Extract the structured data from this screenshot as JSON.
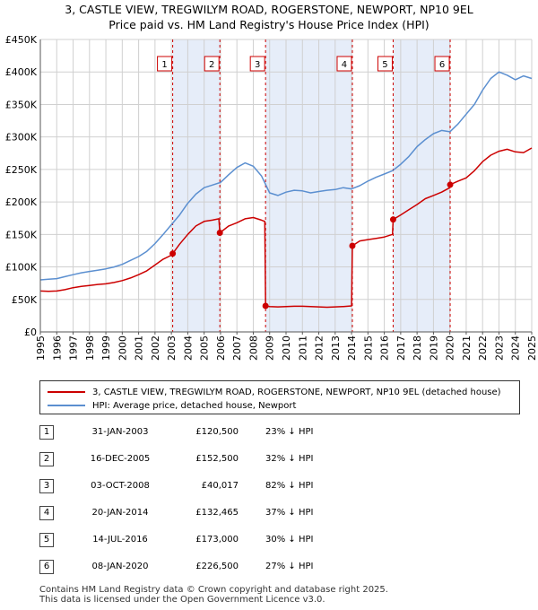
{
  "title": {
    "line1": "3, CASTLE VIEW, TREGWILYM ROAD, ROGERSTONE, NEWPORT, NP10 9EL",
    "line2": "Price paid vs. HM Land Registry's House Price Index (HPI)"
  },
  "colors": {
    "price_line": "#cc0000",
    "hpi_line": "#5b8fd0",
    "shade": "#e6edf9",
    "event_line": "#cc0000",
    "grid": "#d0d0d0"
  },
  "legend": {
    "items": [
      {
        "label": "3, CASTLE VIEW, TREGWILYM ROAD, ROGERSTONE, NEWPORT, NP10 9EL (detached house)"
      },
      {
        "label": "HPI: Average price, detached house, Newport"
      }
    ]
  },
  "transactions": [
    {
      "num": "1",
      "date": "31-JAN-2003",
      "price": "£120,500",
      "hpi": "23% ↓ HPI"
    },
    {
      "num": "2",
      "date": "16-DEC-2005",
      "price": "£152,500",
      "hpi": "32% ↓ HPI"
    },
    {
      "num": "3",
      "date": "03-OCT-2008",
      "price": "£40,017",
      "hpi": "82% ↓ HPI"
    },
    {
      "num": "4",
      "date": "20-JAN-2014",
      "price": "£132,465",
      "hpi": "37% ↓ HPI"
    },
    {
      "num": "5",
      "date": "14-JUL-2016",
      "price": "£173,000",
      "hpi": "30% ↓ HPI"
    },
    {
      "num": "6",
      "date": "08-JAN-2020",
      "price": "£226,500",
      "hpi": "27% ↓ HPI"
    }
  ],
  "footer": {
    "line1": "Contains HM Land Registry data © Crown copyright and database right 2025.",
    "line2": "This data is licensed under the Open Government Licence v3.0."
  },
  "chart_data": {
    "type": "line",
    "title": "3, CASTLE VIEW, TREGWILYM ROAD, ROGERSTONE, NEWPORT, NP10 9EL",
    "subtitle": "Price paid vs. HM Land Registry's House Price Index (HPI)",
    "xlim": [
      1995,
      2025
    ],
    "ylim": [
      0,
      450000
    ],
    "x_ticks": [
      1995,
      1996,
      1997,
      1998,
      1999,
      2000,
      2001,
      2002,
      2003,
      2004,
      2005,
      2006,
      2007,
      2008,
      2009,
      2010,
      2011,
      2012,
      2013,
      2014,
      2015,
      2016,
      2017,
      2018,
      2019,
      2020,
      2021,
      2022,
      2023,
      2024,
      2025
    ],
    "y_ticks": [
      {
        "value": 0,
        "label": "£0"
      },
      {
        "value": 50000,
        "label": "£50K"
      },
      {
        "value": 100000,
        "label": "£100K"
      },
      {
        "value": 150000,
        "label": "£150K"
      },
      {
        "value": 200000,
        "label": "£200K"
      },
      {
        "value": 250000,
        "label": "£250K"
      },
      {
        "value": 300000,
        "label": "£300K"
      },
      {
        "value": 350000,
        "label": "£350K"
      },
      {
        "value": 400000,
        "label": "£400K"
      },
      {
        "value": 450000,
        "label": "£450K"
      }
    ],
    "grid": true,
    "legend_position": "below",
    "shaded_ranges": [
      [
        2003.08,
        2005.96
      ],
      [
        2008.75,
        2014.05
      ],
      [
        2016.54,
        2020.02
      ]
    ],
    "events": [
      {
        "label": "1",
        "x": 2003.08,
        "y": 120500
      },
      {
        "label": "2",
        "x": 2005.96,
        "y": 152500
      },
      {
        "label": "3",
        "x": 2008.75,
        "y": 40017
      },
      {
        "label": "4",
        "x": 2014.05,
        "y": 132465
      },
      {
        "label": "5",
        "x": 2016.54,
        "y": 173000
      },
      {
        "label": "6",
        "x": 2020.02,
        "y": 226500
      }
    ],
    "series": [
      {
        "name": "3, CASTLE VIEW, TREGWILYM ROAD, ROGERSTONE, NEWPORT, NP10 9EL (detached house)",
        "x": [
          1995.0,
          1995.5,
          1996.0,
          1996.5,
          1997.0,
          1997.5,
          1998.0,
          1998.5,
          1999.0,
          1999.5,
          2000.0,
          2000.5,
          2001.0,
          2001.5,
          2002.0,
          2002.5,
          2003.0,
          2003.08,
          2003.5,
          2004.0,
          2004.5,
          2005.0,
          2005.5,
          2005.9,
          2005.96,
          2006.5,
          2007.0,
          2007.5,
          2008.0,
          2008.5,
          2008.7,
          2008.75,
          2009.0,
          2009.5,
          2010.0,
          2010.5,
          2011.0,
          2011.5,
          2012.0,
          2012.5,
          2013.0,
          2013.5,
          2014.0,
          2014.05,
          2014.5,
          2015.0,
          2015.5,
          2016.0,
          2016.5,
          2016.54,
          2017.0,
          2017.5,
          2018.0,
          2018.5,
          2019.0,
          2019.5,
          2020.0,
          2020.02,
          2020.5,
          2021.0,
          2021.5,
          2022.0,
          2022.5,
          2023.0,
          2023.5,
          2024.0,
          2024.5,
          2025.0
        ],
        "y": [
          63000,
          62500,
          63000,
          65000,
          68000,
          70000,
          71500,
          73000,
          74000,
          76000,
          79000,
          83000,
          88000,
          94000,
          103000,
          112000,
          118000,
          120500,
          135000,
          150000,
          163000,
          170000,
          172000,
          174000,
          152500,
          163000,
          168000,
          174000,
          176000,
          172000,
          170000,
          40017,
          39000,
          38500,
          39000,
          39500,
          39500,
          39000,
          38500,
          38000,
          38500,
          39000,
          40000,
          132465,
          140000,
          142000,
          144000,
          146000,
          150000,
          173000,
          180000,
          188000,
          196000,
          205000,
          210000,
          215000,
          222000,
          226500,
          232000,
          237000,
          248000,
          262000,
          272000,
          278000,
          281000,
          277000,
          276000,
          283000
        ]
      },
      {
        "name": "HPI: Average price, detached house, Newport",
        "x": [
          1995.0,
          1995.5,
          1996.0,
          1996.5,
          1997.0,
          1997.5,
          1998.0,
          1998.5,
          1999.0,
          1999.5,
          2000.0,
          2000.5,
          2001.0,
          2001.5,
          2002.0,
          2002.5,
          2003.0,
          2003.5,
          2004.0,
          2004.5,
          2005.0,
          2005.5,
          2006.0,
          2006.5,
          2007.0,
          2007.5,
          2008.0,
          2008.5,
          2009.0,
          2009.5,
          2010.0,
          2010.5,
          2011.0,
          2011.5,
          2012.0,
          2012.5,
          2013.0,
          2013.5,
          2014.0,
          2014.5,
          2015.0,
          2015.5,
          2016.0,
          2016.5,
          2017.0,
          2017.5,
          2018.0,
          2018.5,
          2019.0,
          2019.5,
          2020.0,
          2020.5,
          2021.0,
          2021.5,
          2022.0,
          2022.5,
          2023.0,
          2023.5,
          2024.0,
          2024.5,
          2025.0
        ],
        "y": [
          80000,
          81000,
          82000,
          85000,
          88000,
          91000,
          93000,
          95000,
          97000,
          100000,
          104000,
          110000,
          116000,
          124000,
          136000,
          150000,
          165000,
          180000,
          198000,
          212000,
          222000,
          226000,
          230000,
          242000,
          253000,
          260000,
          255000,
          240000,
          214000,
          210000,
          215000,
          218000,
          217000,
          214000,
          216000,
          218000,
          219000,
          222000,
          220000,
          225000,
          232000,
          238000,
          243000,
          248000,
          258000,
          270000,
          285000,
          296000,
          305000,
          310000,
          308000,
          320000,
          335000,
          350000,
          372000,
          390000,
          400000,
          395000,
          388000,
          394000,
          390000
        ]
      }
    ]
  }
}
